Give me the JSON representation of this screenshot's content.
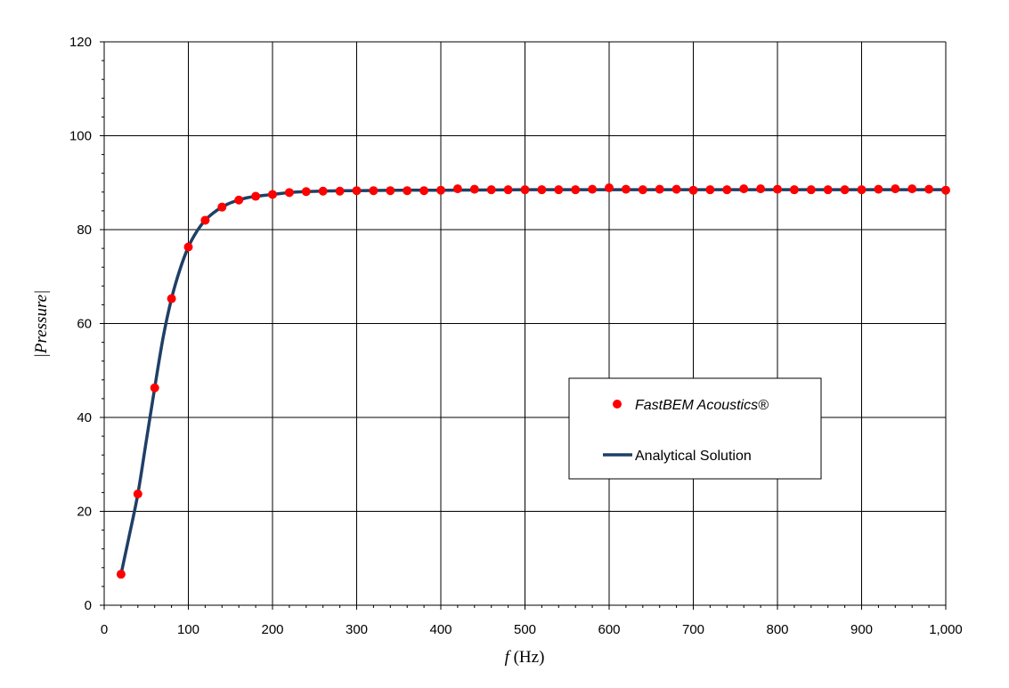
{
  "chart_data": {
    "type": "scatter",
    "title": "",
    "xlabel_prefix": "f",
    "xlabel_unit": " (Hz)",
    "ylabel": "|Pressure|",
    "xlim": [
      0,
      1000
    ],
    "ylim": [
      0,
      120
    ],
    "x_ticks": [
      0,
      100,
      200,
      300,
      400,
      500,
      600,
      700,
      800,
      900,
      1000
    ],
    "x_tick_labels": [
      "0",
      "100",
      "200",
      "300",
      "400",
      "500",
      "600",
      "700",
      "800",
      "900",
      "1,000"
    ],
    "y_ticks": [
      0,
      20,
      40,
      60,
      80,
      100,
      120
    ],
    "y_tick_labels": [
      "0",
      "20",
      "40",
      "60",
      "80",
      "100",
      "120"
    ],
    "grid": true,
    "legend_position": "center-right",
    "series": [
      {
        "name": "FastBEM Acoustics®",
        "kind": "markers",
        "color": "#ff0000",
        "x": [
          20,
          40,
          60,
          80,
          100,
          120,
          140,
          160,
          180,
          200,
          220,
          240,
          260,
          280,
          300,
          320,
          340,
          360,
          380,
          400,
          420,
          440,
          460,
          480,
          500,
          520,
          540,
          560,
          580,
          600,
          620,
          640,
          660,
          680,
          700,
          720,
          740,
          760,
          780,
          800,
          820,
          840,
          860,
          880,
          900,
          920,
          940,
          960,
          980,
          1000
        ],
        "y": [
          6.6,
          23.7,
          46.3,
          65.3,
          76.3,
          82.0,
          84.8,
          86.3,
          87.1,
          87.5,
          87.9,
          88.1,
          88.2,
          88.2,
          88.3,
          88.3,
          88.3,
          88.3,
          88.3,
          88.4,
          88.7,
          88.6,
          88.5,
          88.5,
          88.5,
          88.5,
          88.5,
          88.5,
          88.6,
          88.9,
          88.6,
          88.5,
          88.6,
          88.6,
          88.4,
          88.5,
          88.5,
          88.7,
          88.7,
          88.6,
          88.5,
          88.5,
          88.5,
          88.5,
          88.5,
          88.6,
          88.7,
          88.7,
          88.6,
          88.4
        ]
      },
      {
        "name": "Analytical Solution",
        "kind": "line",
        "color": "#1f3f66",
        "x": [
          20,
          30,
          40,
          50,
          60,
          70,
          80,
          90,
          100,
          110,
          120,
          130,
          140,
          150,
          160,
          170,
          180,
          190,
          200,
          220,
          240,
          260,
          280,
          300,
          350,
          400,
          500,
          600,
          700,
          800,
          900,
          1000
        ],
        "y": [
          6.6,
          15.0,
          23.7,
          35.0,
          46.3,
          57.0,
          65.3,
          71.5,
          76.3,
          79.6,
          82.0,
          83.6,
          84.8,
          85.7,
          86.3,
          86.8,
          87.1,
          87.3,
          87.5,
          87.9,
          88.1,
          88.2,
          88.3,
          88.3,
          88.4,
          88.4,
          88.5,
          88.5,
          88.5,
          88.5,
          88.5,
          88.5
        ]
      }
    ]
  }
}
